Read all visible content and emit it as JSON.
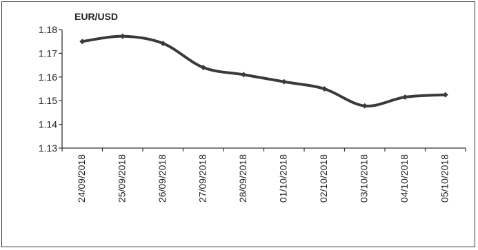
{
  "chart_data": {
    "type": "line",
    "title": "EUR/USD",
    "xlabel": "",
    "ylabel": "",
    "categories": [
      "24/09/2018",
      "25/09/2018",
      "26/09/2018",
      "27/09/2018",
      "28/09/2018",
      "01/10/2018",
      "02/10/2018",
      "03/10/2018",
      "04/10/2018",
      "05/10/2018"
    ],
    "series": [
      {
        "values": [
          1.175,
          1.1772,
          1.1742,
          1.164,
          1.161,
          1.158,
          1.155,
          1.1478,
          1.1515,
          1.1525
        ]
      }
    ],
    "ylim": [
      1.13,
      1.18
    ],
    "yticks": [
      "1.13",
      "1.14",
      "1.15",
      "1.16",
      "1.17",
      "1.18"
    ],
    "grid": false,
    "legend": "none",
    "line_color": "#3a3a3a"
  }
}
